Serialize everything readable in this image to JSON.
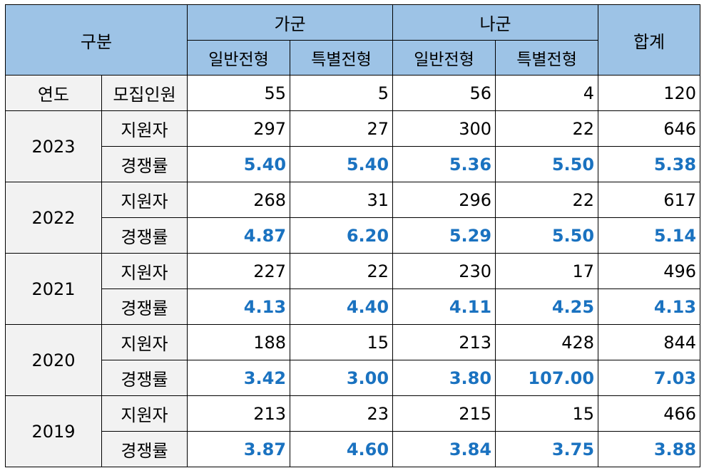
{
  "header": {
    "category": "구분",
    "group_ga": "가군",
    "group_na": "나군",
    "total": "합계",
    "ga_general": "일반전형",
    "ga_special": "특별전형",
    "na_general": "일반전형",
    "na_special": "특별전형"
  },
  "quota": {
    "year_label": "연도",
    "label": "모집인원",
    "values": [
      "55",
      "5",
      "56",
      "4",
      "120"
    ]
  },
  "years": [
    {
      "year": "2023",
      "applicants_label": "지원자",
      "applicants": [
        "297",
        "27",
        "300",
        "22",
        "646"
      ],
      "rate_label": "경쟁률",
      "rates": [
        "5.40",
        "5.40",
        "5.36",
        "5.50",
        "5.38"
      ]
    },
    {
      "year": "2022",
      "applicants_label": "지원자",
      "applicants": [
        "268",
        "31",
        "296",
        "22",
        "617"
      ],
      "rate_label": "경쟁률",
      "rates": [
        "4.87",
        "6.20",
        "5.29",
        "5.50",
        "5.14"
      ]
    },
    {
      "year": "2021",
      "applicants_label": "지원자",
      "applicants": [
        "227",
        "22",
        "230",
        "17",
        "496"
      ],
      "rate_label": "경쟁률",
      "rates": [
        "4.13",
        "4.40",
        "4.11",
        "4.25",
        "4.13"
      ]
    },
    {
      "year": "2020",
      "applicants_label": "지원자",
      "applicants": [
        "188",
        "15",
        "213",
        "428",
        "844"
      ],
      "rate_label": "경쟁률",
      "rates": [
        "3.42",
        "3.00",
        "3.80",
        "107.00",
        "7.03"
      ]
    },
    {
      "year": "2019",
      "applicants_label": "지원자",
      "applicants": [
        "213",
        "23",
        "215",
        "15",
        "466"
      ],
      "rate_label": "경쟁률",
      "rates": [
        "3.87",
        "4.60",
        "3.84",
        "3.75",
        "3.88"
      ]
    }
  ],
  "colors": {
    "header_bg": "#9dc3e6",
    "label_bg": "#f2f2f2",
    "rate_text": "#1a72c0",
    "border": "#000000"
  }
}
